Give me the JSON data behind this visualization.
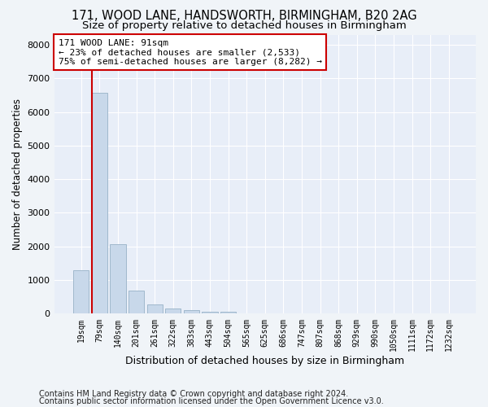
{
  "title1": "171, WOOD LANE, HANDSWORTH, BIRMINGHAM, B20 2AG",
  "title2": "Size of property relative to detached houses in Birmingham",
  "xlabel": "Distribution of detached houses by size in Birmingham",
  "ylabel": "Number of detached properties",
  "footnote1": "Contains HM Land Registry data © Crown copyright and database right 2024.",
  "footnote2": "Contains public sector information licensed under the Open Government Licence v3.0.",
  "bin_labels": [
    "19sqm",
    "79sqm",
    "140sqm",
    "201sqm",
    "261sqm",
    "322sqm",
    "383sqm",
    "443sqm",
    "504sqm",
    "565sqm",
    "625sqm",
    "686sqm",
    "747sqm",
    "807sqm",
    "868sqm",
    "929sqm",
    "990sqm",
    "1050sqm",
    "1111sqm",
    "1172sqm",
    "1232sqm"
  ],
  "bar_values": [
    1300,
    6580,
    2080,
    700,
    270,
    150,
    100,
    60,
    60,
    0,
    0,
    0,
    0,
    0,
    0,
    0,
    0,
    0,
    0,
    0,
    0
  ],
  "bar_color": "#c8d8ea",
  "bar_edge_color": "#a0b8cc",
  "vline_color": "#cc0000",
  "annotation_text": "171 WOOD LANE: 91sqm\n← 23% of detached houses are smaller (2,533)\n75% of semi-detached houses are larger (8,282) →",
  "annotation_box_color": "#ffffff",
  "annotation_box_edge": "#cc0000",
  "ylim": [
    0,
    8300
  ],
  "yticks": [
    0,
    1000,
    2000,
    3000,
    4000,
    5000,
    6000,
    7000,
    8000
  ],
  "background_color": "#f0f4f8",
  "plot_bg_color": "#e8eef8",
  "grid_color": "#ffffff",
  "title_fontsize": 10.5,
  "subtitle_fontsize": 9.5,
  "tick_fontsize": 7,
  "ylabel_fontsize": 8.5,
  "xlabel_fontsize": 9,
  "footnote_fontsize": 7.0
}
